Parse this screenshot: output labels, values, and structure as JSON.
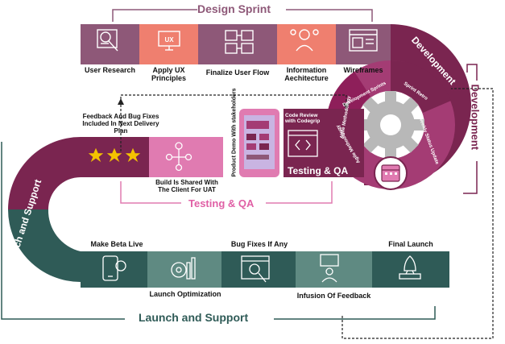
{
  "titles": {
    "design_sprint": "Design Sprint",
    "development_side": "Development",
    "development_band": "Development",
    "testing_qa_bracket": "Testing & QA",
    "testing_qa_box": "Testing & QA",
    "launch_support_bottom": "Launch and Support",
    "launch_support_arc": "Launch and Support"
  },
  "design_sprint_steps": [
    {
      "label": "User Research",
      "icon": "user-research-icon"
    },
    {
      "label": "Apply UX Principles",
      "icon": "ux-principles-icon"
    },
    {
      "label": "Finalize User Flow",
      "icon": "user-flow-icon"
    },
    {
      "label": "Information Aechitecture",
      "icon": "information-architecture-icon"
    },
    {
      "label": "Wireframes",
      "icon": "wireframes-icon"
    }
  ],
  "development_ring": [
    "Development Sprints",
    "Sprint Retro",
    "Weekly Status Update",
    "Agile Methodology",
    "Agile Methodology"
  ],
  "testing_steps": {
    "feedback": "Feedback And Bug Fixes Included In Next Delivery Plan",
    "build_shared": "Build Is Shared With The Client For UAT",
    "product_demo": "Product Demo With stakeholders",
    "code_review": "Code Review with Codegrip"
  },
  "launch_steps": [
    {
      "label": "Make Beta Live",
      "icon": "phone-touch-icon"
    },
    {
      "label": "Launch Optimization",
      "icon": "optimization-gear-icon"
    },
    {
      "label": "Bug Fixes If Any",
      "icon": "bug-fix-icon"
    },
    {
      "label": "Infusion Of Feedback",
      "icon": "feedback-person-icon"
    },
    {
      "label": "Final Launch",
      "icon": "rocket-icon"
    }
  ],
  "colors": {
    "design_mauve": "#8e5878",
    "design_salmon": "#ef7f6f",
    "dev_wine": "#7a2550",
    "dev_magenta": "#a43c74",
    "testing_pink": "#e07bb1",
    "testing_title": "#e05fa5",
    "launch_teal": "#2f5b57",
    "launch_green": "#5f8a82",
    "launch_title": "#2f5b57",
    "gear": "#b8b8b8",
    "star": "#f4c300"
  }
}
